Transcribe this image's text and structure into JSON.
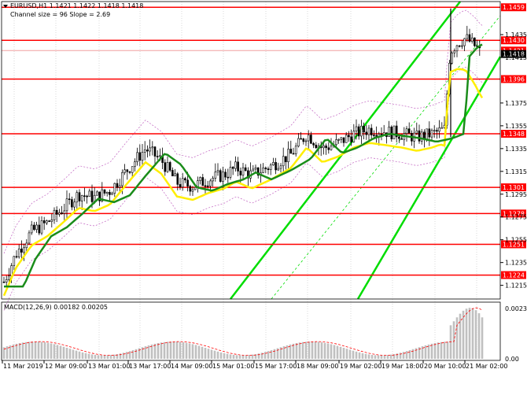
{
  "header": {
    "symbol_line": "EURUSD,H1  1.1421 1.1422 1.1418 1.1418",
    "channel_line": "Channel size = 96 Slope = 2.69"
  },
  "price_axis": {
    "ticks": [
      "1.1435",
      "1.1415",
      "1.1375",
      "1.1355",
      "1.1335",
      "1.1315",
      "1.1295",
      "1.1275",
      "1.1255",
      "1.1235",
      "1.1215"
    ]
  },
  "levels": [
    {
      "label": "1.1459",
      "color": "#ff0000"
    },
    {
      "label": "1.1430",
      "color": "#ff0000"
    },
    {
      "label": "1.1421",
      "color": "#ff0000"
    },
    {
      "label": "1.1418",
      "color": "#000000"
    },
    {
      "label": "1.1396",
      "color": "#ff0000"
    },
    {
      "label": "1.1348",
      "color": "#ff0000"
    },
    {
      "label": "1.1301",
      "color": "#ff0000"
    },
    {
      "label": "1.1278",
      "color": "#ff0000"
    },
    {
      "label": "1.1251",
      "color": "#ff0000"
    },
    {
      "label": "1.1224",
      "color": "#ff0000"
    }
  ],
  "time_axis": {
    "ticks": [
      "11 Mar 2019",
      "12 Mar 09:00",
      "13 Mar 01:00",
      "13 Mar 17:00",
      "14 Mar 09:00",
      "15 Mar 01:00",
      "15 Mar 17:00",
      "18 Mar 09:00",
      "19 Mar 02:00",
      "19 Mar 18:00",
      "20 Mar 10:00",
      "21 Mar 02:00"
    ]
  },
  "macd": {
    "label": "MACD(12,26,9) 0.00182 0.00205",
    "ticks": [
      "0.00233",
      "0.00"
    ]
  },
  "colors": {
    "bull_channel": "#00dd00",
    "ma_fast": "#ffee00",
    "ma_slow": "#1a8c1a",
    "level_line": "#ff0000",
    "macd_hist": "#c0c0c0",
    "macd_signal": "#ff0000",
    "bollinger": "#c060c0"
  },
  "chart_data": {
    "type": "candlestick",
    "symbol": "EURUSD",
    "timeframe": "H1",
    "ylim": [
      1.1203,
      1.1464
    ],
    "horizontal_levels": [
      1.1459,
      1.143,
      1.1396,
      1.1348,
      1.1301,
      1.1278,
      1.1251,
      1.1224
    ],
    "last_close": 1.1418,
    "macd_range": [
      0.0,
      0.00233
    ]
  }
}
